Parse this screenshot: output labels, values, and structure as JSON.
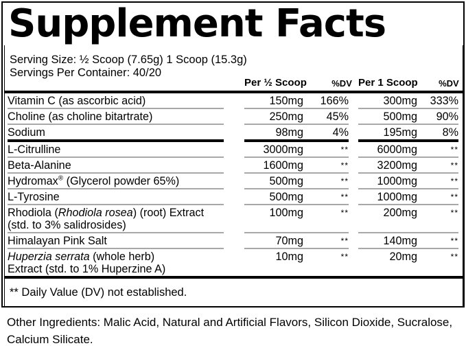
{
  "label": {
    "title": "Supplement Facts",
    "serving_size": "Serving Size: ½ Scoop (7.65g) 1 Scoop (15.3g)",
    "servings_per_container": "Servings Per Container: 40/20",
    "footnote": "** Daily Value (DV) not established."
  },
  "table": {
    "headers": {
      "per_half_scoop": "Per ½ Scoop",
      "dv_half": "%DV",
      "per_one_scoop": "Per 1 Scoop",
      "dv_one": "%DV"
    },
    "rows": [
      {
        "name": [
          {
            "t": "Vitamin C (as ascorbic acid)"
          }
        ],
        "per_half": "150mg",
        "dv_half": "166%",
        "per_one": "300mg",
        "dv_one": "333%"
      },
      {
        "name": [
          {
            "t": "Choline (as choline bitartrate)"
          }
        ],
        "per_half": "250mg",
        "dv_half": "45%",
        "per_one": "500mg",
        "dv_one": "90%"
      },
      {
        "name": [
          {
            "t": "Sodium"
          }
        ],
        "per_half": "98mg",
        "dv_half": "4%",
        "per_one": "195mg",
        "dv_one": "8%"
      },
      {
        "thick_divider_before": true,
        "name": [
          {
            "t": "L-Citrulline"
          }
        ],
        "per_half": "3000mg",
        "dv_half": "**",
        "per_one": "6000mg",
        "dv_one": "**"
      },
      {
        "name": [
          {
            "t": "Beta-Alanine"
          }
        ],
        "per_half": "1600mg",
        "dv_half": "**",
        "per_one": "3200mg",
        "dv_one": "**"
      },
      {
        "name": [
          {
            "t": "Hydromax"
          },
          {
            "t": "®",
            "sup": true
          },
          {
            "t": " (Glycerol powder 65%)"
          }
        ],
        "per_half": "500mg",
        "dv_half": "**",
        "per_one": "1000mg",
        "dv_one": "**"
      },
      {
        "name": [
          {
            "t": "L-Tyrosine"
          }
        ],
        "per_half": "500mg",
        "dv_half": "**",
        "per_one": "1000mg",
        "dv_one": "**"
      },
      {
        "name": [
          {
            "t": "Rhodiola ("
          },
          {
            "t": "Rhodiola rosea",
            "i": true
          },
          {
            "t": ") (root) Extract"
          }
        ],
        "name2": [
          {
            "t": "(std. to 3% salidrosides)"
          }
        ],
        "per_half": "100mg",
        "dv_half": "**",
        "per_one": "200mg",
        "dv_one": "**"
      },
      {
        "name": [
          {
            "t": "Himalayan Pink Salt"
          }
        ],
        "per_half": "70mg",
        "dv_half": "**",
        "per_one": "140mg",
        "dv_one": "**"
      },
      {
        "name": [
          {
            "t": "Huperzia serrata",
            "i": true
          },
          {
            "t": " (whole herb)"
          }
        ],
        "name2": [
          {
            "t": "Extract (std. to 1% Huperzine A)"
          }
        ],
        "per_half": "10mg",
        "dv_half": "**",
        "per_one": "20mg",
        "dv_one": "**"
      }
    ]
  },
  "other_ingredients": "Other Ingredients: Malic Acid, Natural and Artificial Flavors, Silicon Dioxide, Sucralose, Calcium Silicate.",
  "colors": {
    "background": "#ffffff",
    "text": "#000000",
    "border": "#000000",
    "divider": "#a8a8a8"
  }
}
